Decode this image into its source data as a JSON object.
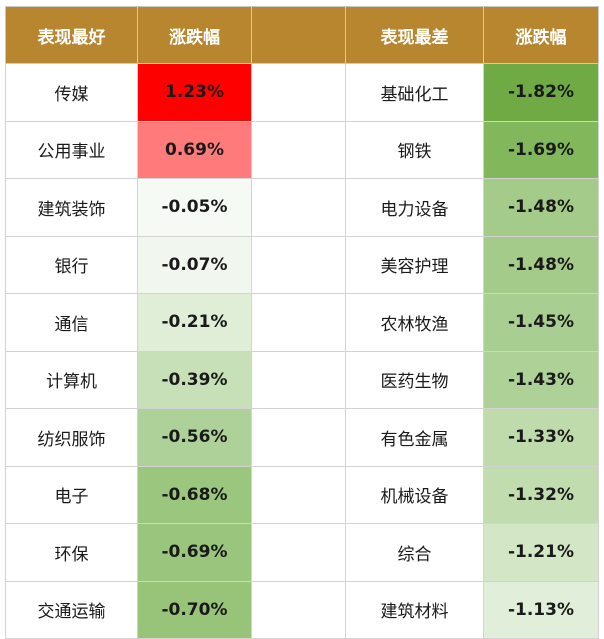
{
  "headers": {
    "best_label": "表现最好",
    "best_change_label": "涨跌幅",
    "worst_label": "表现最差",
    "worst_change_label": "涨跌幅"
  },
  "colors": {
    "header_bg": "#b8862e",
    "header_text": "#ffffff"
  },
  "rows": [
    {
      "best_name": "传媒",
      "best_change": "1.23%",
      "best_color": "#ff0000",
      "worst_name": "基础化工",
      "worst_change": "-1.82%",
      "worst_color": "#6faa45"
    },
    {
      "best_name": "公用事业",
      "best_change": "0.69%",
      "best_color": "#ff7b7b",
      "worst_name": "钢铁",
      "worst_change": "-1.69%",
      "worst_color": "#82b75c"
    },
    {
      "best_name": "建筑装饰",
      "best_change": "-0.05%",
      "best_color": "#f6faf4",
      "worst_name": "电力设备",
      "worst_change": "-1.48%",
      "worst_color": "#a4cb8a"
    },
    {
      "best_name": "银行",
      "best_change": "-0.07%",
      "best_color": "#f1f7ee",
      "worst_name": "美容护理",
      "worst_change": "-1.48%",
      "worst_color": "#a4cb8a"
    },
    {
      "best_name": "通信",
      "best_change": "-0.21%",
      "best_color": "#e0eed8",
      "worst_name": "农林牧渔",
      "worst_change": "-1.45%",
      "worst_color": "#a9ce91"
    },
    {
      "best_name": "计算机",
      "best_change": "-0.39%",
      "best_color": "#c7e0b8",
      "worst_name": "医药生物",
      "worst_change": "-1.43%",
      "worst_color": "#add196"
    },
    {
      "best_name": "纺织服饰",
      "best_change": "-0.56%",
      "best_color": "#aed199",
      "worst_name": "有色金属",
      "worst_change": "-1.33%",
      "worst_color": "#bfdbac"
    },
    {
      "best_name": "电子",
      "best_change": "-0.68%",
      "best_color": "#9bc67d",
      "worst_name": "机械设备",
      "worst_change": "-1.32%",
      "worst_color": "#c1dcae"
    },
    {
      "best_name": "环保",
      "best_change": "-0.69%",
      "best_color": "#9ac57c",
      "worst_name": "综合",
      "worst_change": "-1.21%",
      "worst_color": "#d3e6c6"
    },
    {
      "best_name": "交通运输",
      "best_change": "-0.70%",
      "best_color": "#98c47a",
      "worst_name": "建筑材料",
      "worst_change": "-1.13%",
      "worst_color": "#e1eed9"
    }
  ]
}
